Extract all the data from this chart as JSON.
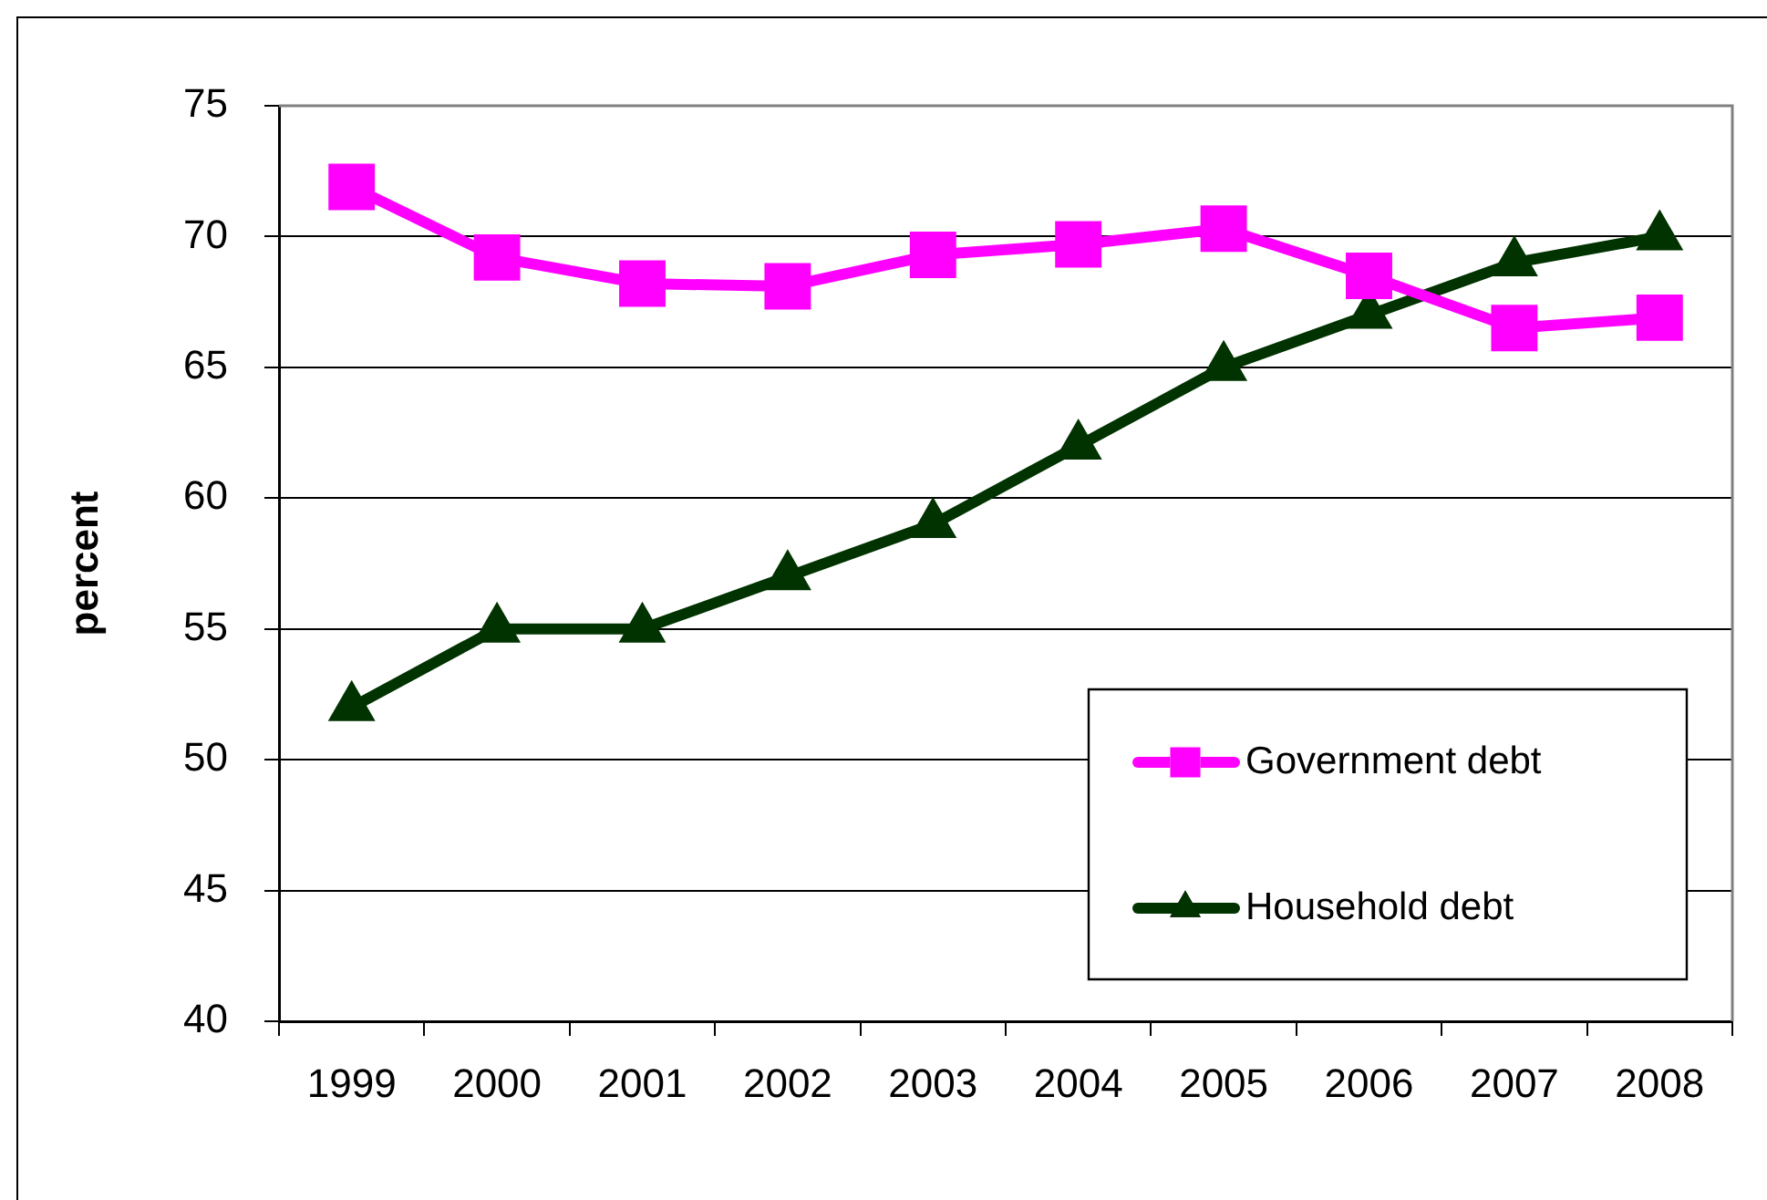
{
  "chart_data": {
    "type": "line",
    "ylabel": "percent",
    "categories": [
      "1999",
      "2000",
      "2001",
      "2002",
      "2003",
      "2004",
      "2005",
      "2006",
      "2007",
      "2008"
    ],
    "series": [
      {
        "name": "Government debt",
        "color": "#ff00ff",
        "marker": "square",
        "values": [
          71.9,
          69.2,
          68.2,
          68.1,
          69.3,
          69.7,
          70.3,
          68.5,
          66.5,
          66.9
        ]
      },
      {
        "name": "Household debt",
        "color": "#003300",
        "marker": "triangle",
        "values": [
          52,
          55,
          55,
          57,
          59,
          62,
          65,
          67,
          69,
          70
        ]
      }
    ],
    "ylim": [
      40,
      75
    ],
    "yticks": [
      40,
      45,
      50,
      55,
      60,
      65,
      70,
      75
    ],
    "grid": "y",
    "legend": "bottom right",
    "line_style": "solid"
  }
}
